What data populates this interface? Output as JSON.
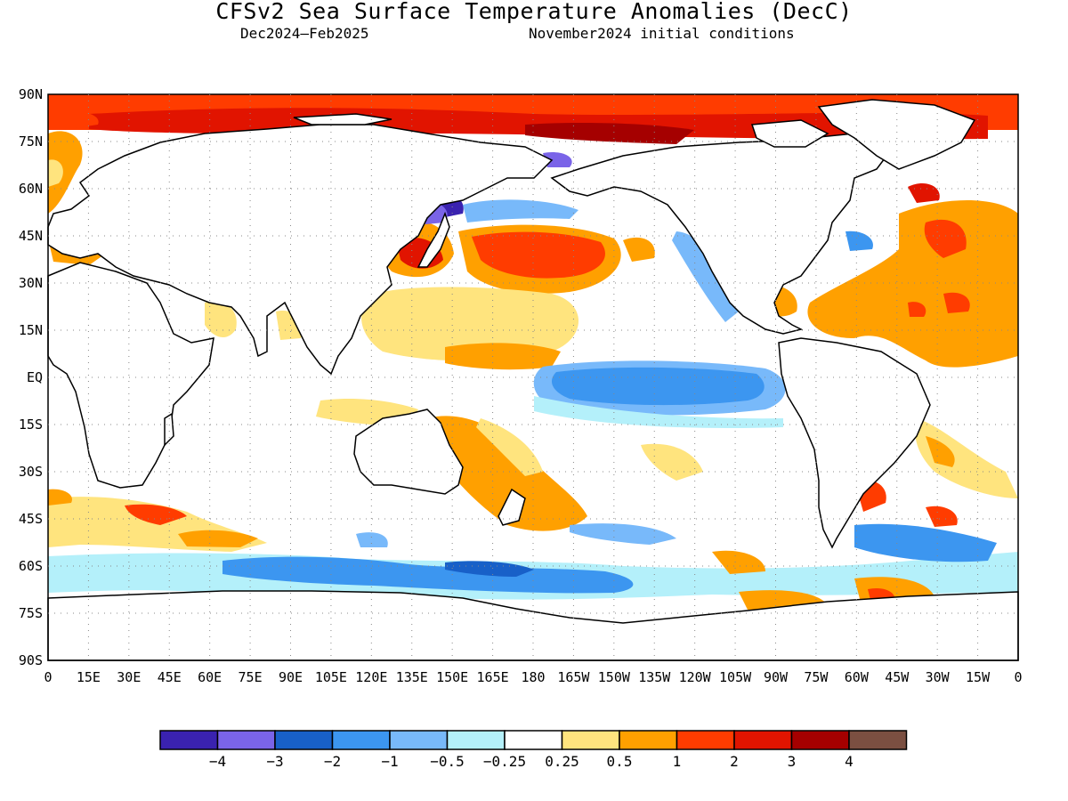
{
  "title": "CFSv2 Sea Surface Temperature Anomalies (DecC)",
  "subtitle_left": "Dec2024–Feb2025",
  "subtitle_right": "November2024 initial conditions",
  "latitude_labels": [
    "90N",
    "75N",
    "60N",
    "45N",
    "30N",
    "15N",
    "EQ",
    "15S",
    "30S",
    "45S",
    "60S",
    "75S",
    "90S"
  ],
  "longitude_labels": [
    "0",
    "15E",
    "30E",
    "45E",
    "60E",
    "75E",
    "90E",
    "105E",
    "120E",
    "135E",
    "150E",
    "165E",
    "180",
    "165W",
    "150W",
    "135W",
    "120W",
    "105W",
    "90W",
    "75W",
    "60W",
    "45W",
    "30W",
    "15W",
    "0"
  ],
  "colorbar": {
    "colors": [
      "#3a22b0",
      "#7a64e8",
      "#1860c8",
      "#3c96f0",
      "#78b9fa",
      "#b4f0fa",
      "#ffffff",
      "#ffe47e",
      "#ffa000",
      "#ff3c00",
      "#e11400",
      "#a50000",
      "#7b4f41"
    ],
    "labels": [
      "−4",
      "−3",
      "−2",
      "−1",
      "−0.5",
      "−0.25",
      "0.25",
      "0.5",
      "1",
      "2",
      "3",
      "4"
    ]
  }
}
